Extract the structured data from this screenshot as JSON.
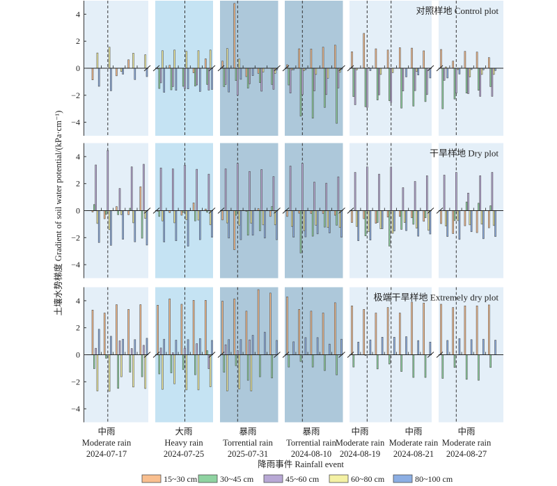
{
  "colors": {
    "series": [
      "#F9BF8F",
      "#8FD3A1",
      "#B8A8D5",
      "#F4F1A4",
      "#8CAEE3"
    ],
    "outline": "#4d4d4d",
    "shades": {
      "light": "#E4EFF8",
      "medium": "#C5E3F3",
      "dark": "#ADC8DA"
    }
  },
  "chart_data": {
    "type": "bar",
    "title": "",
    "xlabel": "降雨事件 Rainfall event",
    "ylabel": "土壤水势梯度 Gradient of soil water potential/(kPa·cm⁻¹)",
    "ylim": [
      -5,
      5
    ],
    "yticks": [
      -4,
      -2,
      0,
      2,
      4
    ],
    "ytick_labels": [
      "−4",
      "−2",
      "0",
      "2",
      "4"
    ],
    "grid": false,
    "legend_position": "bottom",
    "legend": [
      "15~30 cm",
      "30~45 cm",
      "45~60 cm",
      "60~80 cm",
      "80~100 cm"
    ],
    "series_names": [
      "15~30 cm",
      "30~45 cm",
      "45~60 cm",
      "60~80 cm",
      "80~100 cm"
    ],
    "events": [
      {
        "cn": "中雨",
        "en": "Moderate rain",
        "date": "2024-07-17"
      },
      {
        "cn": "大雨",
        "en": "Heavy rain",
        "date": "2024-07-25"
      },
      {
        "cn": "暴雨",
        "en": "Torrential rain",
        "date": "2025-07-31"
      },
      {
        "cn": "暴雨",
        "en": "Torrential rain",
        "date": "2024-08-10"
      },
      {
        "cn": "中雨",
        "en": "Moderate rain",
        "date": "2024-08-19"
      },
      {
        "cn": "中雨",
        "en": "Moderate rain",
        "date": "2024-08-21"
      },
      {
        "cn": "中雨",
        "en": "Moderate rain",
        "date": "2024-08-27"
      }
    ],
    "panels": [
      {
        "shade": "light",
        "event_groups": [
          1
        ],
        "event_ids": [
          0
        ]
      },
      {
        "shade": "medium",
        "event_groups": [
          2
        ],
        "event_ids": [
          1
        ]
      },
      {
        "shade": "dark",
        "event_groups": [
          1
        ],
        "event_ids": [
          2
        ]
      },
      {
        "shade": "dark",
        "event_groups": [
          1
        ],
        "event_ids": [
          3
        ]
      },
      {
        "shade": "light",
        "event_groups": [
          1,
          3
        ],
        "event_ids": [
          4,
          5
        ]
      },
      {
        "shade": "light",
        "event_groups": [
          1
        ],
        "event_ids": [
          6
        ]
      }
    ],
    "plots": [
      {
        "title": "对照样地 Control plot",
        "panels": [
          [
            [
              -0.86,
              0,
              0,
              1.13,
              -1.34
            ],
            [
              0,
              0,
              0,
              1.56,
              -1.67
            ],
            [
              -0.56,
              0,
              0,
              -0.24,
              -0.44
            ],
            [
              0.63,
              0,
              0,
              1.11,
              -0.84
            ],
            [
              0,
              0,
              0,
              1.0,
              -0.62
            ]
          ],
          [
            [
              -0.05,
              -1.5,
              -1.08,
              1.3,
              -1.78
            ],
            [
              0.22,
              -1.6,
              -1.36,
              1.35,
              -1.63
            ],
            [
              0,
              -1.34,
              -1.5,
              1.25,
              -1.53
            ],
            [
              -0.34,
              -1.32,
              -1.24,
              1.3,
              -1.72
            ],
            [
              0.7,
              -1.2,
              -1.62,
              1.35,
              -1.57
            ]
          ],
          [
            [
              0.53,
              -1.36,
              -1.2,
              1.46,
              -1.76
            ],
            [
              4.8,
              -0.91,
              -2.0,
              0.68,
              -0.82
            ],
            [
              -0.62,
              -1.47,
              -1.15,
              0,
              -0.54
            ],
            [
              -0.38,
              -1.06,
              -1.7,
              -0.28,
              0
            ],
            [
              0,
              -1.2,
              -1.56,
              -0.38,
              -0.13
            ]
          ],
          [
            [
              0.26,
              -1.24,
              -1.84,
              -0.12,
              -0.12
            ],
            [
              1.44,
              -3.55,
              -1.95,
              -0.18,
              -0.11
            ],
            [
              1.42,
              -3.7,
              -1.68,
              -0.46,
              0
            ],
            [
              1.56,
              -2.9,
              -1.95,
              -0.74,
              0
            ],
            [
              1.71,
              -4.08,
              -1.46,
              -0.3,
              -0.1
            ]
          ],
          [
            [
              1.22,
              -2.1,
              -2.7,
              -0.12,
              0
            ],
            [
              2.58,
              -2.85,
              -2.9,
              0.05,
              -0.18
            ],
            [
              1.44,
              -2.35,
              -1.97,
              -0.46,
              0
            ],
            [
              1.35,
              -2.4,
              -2.54,
              -0.33,
              0
            ],
            [
              1.52,
              -2.95,
              -1.68,
              0,
              -0.64
            ],
            [
              1.49,
              -2.8,
              -1.66,
              -0.24,
              -0.5
            ],
            [
              1.29,
              -2.47,
              -1.95,
              0,
              -0.72
            ]
          ],
          [
            [
              1.39,
              -3.0,
              -0.9,
              0.1,
              -0.72
            ],
            [
              0.53,
              -2.28,
              -1.84,
              -0.1,
              -0.43
            ],
            [
              1.25,
              -1.84,
              -1.88,
              -0.64,
              -0.1
            ],
            [
              1.2,
              -1.63,
              -2.08,
              -0.46,
              -0.12
            ],
            [
              0.79,
              -1.36,
              -2.08,
              -0.46,
              -0.17
            ]
          ]
        ]
      },
      {
        "title": "干旱样地 Dry plot",
        "panels": [
          [
            [
              -0.1,
              0.45,
              3.38,
              -0.95,
              -2.36
            ],
            [
              -0.6,
              -0.28,
              4.45,
              -1.41,
              -2.57
            ],
            [
              0.3,
              -0.3,
              1.64,
              -0.3,
              -2.12
            ],
            [
              -0.3,
              0.18,
              3.24,
              -0.9,
              -2.31
            ],
            [
              1.77,
              -2.04,
              3.43,
              -0.58,
              -2.55
            ]
          ],
          [
            [
              -0.05,
              -0.43,
              3.16,
              -0.76,
              -2.32
            ],
            [
              -0.15,
              0,
              3.09,
              -0.9,
              -2.23
            ],
            [
              -0.34,
              -0.14,
              3.36,
              -0.67,
              -2.63
            ],
            [
              0.57,
              -0.76,
              3.06,
              -0.7,
              -2.15
            ],
            [
              0.12,
              -0.12,
              2.7,
              -1.05,
              -1.97
            ]
          ],
          [
            [
              -0.69,
              0,
              3.09,
              -0.91,
              -2.03
            ],
            [
              -2.9,
              -0.34,
              3.5,
              -1.08,
              -2.15
            ],
            [
              -0.05,
              -1.82,
              2.9,
              -0.94,
              -1.82
            ],
            [
              0.15,
              -1.49,
              3.04,
              -1.05,
              -2.03
            ],
            [
              -0.43,
              0.3,
              2.52,
              -1.05,
              -2.15
            ]
          ],
          [
            [
              -0.43,
              0,
              3.3,
              -1.17,
              -1.97
            ],
            [
              -0.19,
              -3.14,
              3.5,
              -1.48,
              -1.94
            ],
            [
              -0.22,
              -1.89,
              2.11,
              -1.08,
              -1.72
            ],
            [
              -0.22,
              -1.22,
              2.03,
              -1.25,
              -1.65
            ],
            [
              -0.34,
              -1.08,
              2.5,
              -1.25,
              -1.97
            ]
          ],
          [
            [
              -0.88,
              0,
              2.83,
              -1.17,
              -2.23
            ],
            [
              -0.6,
              -1.87,
              3.24,
              -1.56,
              -2.18
            ],
            [
              -0.94,
              -0.88,
              2.7,
              -1.34,
              -1.34
            ],
            [
              -0.48,
              -2.63,
              3.23,
              -1.68,
              -1.51
            ],
            [
              -0.43,
              -1.39,
              1.7,
              -0.88,
              -1.48
            ],
            [
              -0.53,
              -1.01,
              2.16,
              -1.3,
              -1.89
            ],
            [
              -0.79,
              -0.53,
              2.58,
              -1.46,
              -1.73
            ]
          ],
          [
            [
              -0.96,
              0,
              2.63,
              -1.13,
              -1.92
            ],
            [
              -1.7,
              -0.74,
              2.83,
              -0.74,
              -2.13
            ],
            [
              -1.12,
              0.64,
              1.3,
              -1.05,
              -1.56
            ],
            [
              -1.63,
              0.55,
              2.58,
              -1.0,
              -2.08
            ],
            [
              -1.27,
              0.36,
              2.83,
              -1.1,
              -1.92
            ]
          ]
        ]
      },
      {
        "title": "极端干旱样地 Extremely dry plot",
        "panels": [
          [
            [
              3.31,
              -1.03,
              0.48,
              -2.68,
              1.89
            ],
            [
              3.09,
              -0.26,
              0,
              -2.71,
              1.37
            ],
            [
              3.71,
              -2.49,
              1.03,
              -1.63,
              1.15
            ],
            [
              3.36,
              -1.29,
              0.46,
              -2.39,
              1.12
            ],
            [
              3.71,
              -1.63,
              0.7,
              -2.5,
              1.22
            ]
          ],
          [
            [
              3.67,
              -1.42,
              0.5,
              -2.56,
              1.15
            ],
            [
              4.14,
              -1.34,
              0.15,
              -2.15,
              1.08
            ],
            [
              3.74,
              -1.1,
              0.48,
              -2.6,
              1.12
            ],
            [
              4.03,
              -1.48,
              0.82,
              -2.6,
              1.2
            ],
            [
              4.03,
              0.3,
              -1.03,
              -2.37,
              1.06
            ]
          ],
          [
            [
              3.97,
              -1.29,
              0.74,
              -2.68,
              1.12
            ],
            [
              4.14,
              -0.81,
              0.31,
              -2.54,
              1.12
            ],
            [
              3.23,
              -1.89,
              1.1,
              -2.68,
              1.44
            ],
            [
              4.82,
              -1.63,
              0,
              0,
              1.67
            ],
            [
              4.57,
              -1.72,
              0,
              0,
              1.06
            ]
          ],
          [
            [
              4.29,
              -0.91,
              0,
              0,
              0.96
            ],
            [
              3.36,
              -0.5,
              0,
              0,
              1.27
            ],
            [
              3.23,
              -0.91,
              0,
              0,
              1.27
            ],
            [
              3.09,
              -1.17,
              0,
              0,
              0.79
            ],
            [
              3.85,
              -1.49,
              0,
              0,
              1.15
            ]
          ],
          [
            [
              3.62,
              -0.91,
              0,
              0,
              0.94
            ],
            [
              3.36,
              -0.05,
              0,
              0,
              1.1
            ],
            [
              3.09,
              -1.05,
              0,
              0,
              1.3
            ],
            [
              3.5,
              -0.69,
              0,
              0,
              1.3
            ],
            [
              3.09,
              -1.24,
              0,
              0,
              1.34
            ],
            [
              3.9,
              -1.68,
              0,
              0,
              1.05
            ],
            [
              3.83,
              -1.68,
              0,
              0,
              0.94
            ]
          ],
          [
            [
              3.74,
              -1.75,
              0,
              0,
              1.06
            ],
            [
              3.5,
              -0.94,
              0,
              0,
              1.2
            ],
            [
              3.62,
              -1.82,
              0,
              0,
              1.12
            ],
            [
              3.62,
              -1.89,
              0,
              0,
              1.15
            ],
            [
              3.69,
              -0.94,
              0,
              0,
              1.08
            ]
          ]
        ]
      }
    ]
  }
}
